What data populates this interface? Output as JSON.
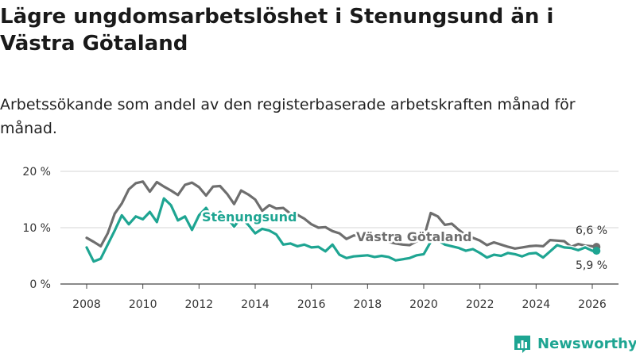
{
  "title": "Lägre ungdomsarbetslöshet i Stenungsund än i Västra Götaland",
  "subtitle": "Arbetssökande som andel av den registerbaserade arbetskraften månad för månad.",
  "brand": {
    "name": "Newsworthy",
    "color": "#1ea592"
  },
  "chart_data": {
    "type": "line",
    "title": "Lägre ungdomsarbetslöshet i Stenungsund än i Västra Götaland",
    "xlabel": "",
    "ylabel": "",
    "xlim": [
      2007.5,
      2026.6
    ],
    "ylim": [
      0,
      20
    ],
    "grid": true,
    "x_ticks": [
      2008,
      2010,
      2012,
      2014,
      2016,
      2018,
      2020,
      2022,
      2024,
      2026
    ],
    "x_tick_labels": [
      "2008",
      "2010",
      "2012",
      "2014",
      "2016",
      "2018",
      "2020",
      "2022",
      "2024",
      "2026"
    ],
    "y_ticks": [
      0,
      10,
      20
    ],
    "y_tick_labels": [
      "0 %",
      "10 %",
      "20 %"
    ],
    "series": [
      {
        "name": "Västra Götaland",
        "color": "#6e6e6e",
        "end_label": "6,6 %",
        "x": [
          2008.0,
          2008.25,
          2008.5,
          2008.75,
          2009.0,
          2009.25,
          2009.5,
          2009.75,
          2010.0,
          2010.25,
          2010.5,
          2010.75,
          2011.0,
          2011.25,
          2011.5,
          2011.75,
          2012.0,
          2012.25,
          2012.5,
          2012.75,
          2013.0,
          2013.25,
          2013.5,
          2013.75,
          2014.0,
          2014.25,
          2014.5,
          2014.75,
          2015.0,
          2015.25,
          2015.5,
          2015.75,
          2016.0,
          2016.25,
          2016.5,
          2016.75,
          2017.0,
          2017.25,
          2017.5,
          2017.75,
          2018.0,
          2018.25,
          2018.5,
          2018.75,
          2019.0,
          2019.25,
          2019.5,
          2019.75,
          2020.0,
          2020.25,
          2020.5,
          2020.75,
          2021.0,
          2021.25,
          2021.5,
          2021.75,
          2022.0,
          2022.25,
          2022.5,
          2022.75,
          2023.0,
          2023.25,
          2023.5,
          2023.75,
          2024.0,
          2024.25,
          2024.5,
          2024.75,
          2025.0,
          2025.25,
          2025.5,
          2025.75,
          2026.0,
          2026.15
        ],
        "values": [
          8.2,
          7.5,
          6.7,
          9.0,
          12.5,
          14.3,
          16.8,
          17.9,
          18.2,
          16.4,
          18.1,
          17.3,
          16.6,
          15.8,
          17.6,
          18.0,
          17.2,
          15.7,
          17.3,
          17.4,
          16.0,
          14.2,
          16.6,
          15.9,
          15.0,
          13.0,
          14.0,
          13.4,
          13.5,
          12.5,
          12.3,
          11.6,
          10.6,
          10.0,
          10.1,
          9.4,
          9.0,
          8.0,
          8.6,
          8.7,
          8.3,
          8.0,
          8.4,
          7.5,
          7.2,
          7.0,
          6.9,
          7.6,
          8.2,
          12.6,
          12.0,
          10.5,
          10.7,
          9.6,
          8.6,
          8.2,
          7.7,
          6.9,
          7.4,
          7.0,
          6.6,
          6.3,
          6.5,
          6.7,
          6.8,
          6.7,
          7.8,
          7.7,
          7.6,
          6.6,
          7.1,
          6.8,
          6.7,
          6.6
        ]
      },
      {
        "name": "Stenungsund",
        "color": "#1ea592",
        "end_label": "5,9 %",
        "x": [
          2008.0,
          2008.25,
          2008.5,
          2008.75,
          2009.0,
          2009.25,
          2009.5,
          2009.75,
          2010.0,
          2010.25,
          2010.5,
          2010.75,
          2011.0,
          2011.25,
          2011.5,
          2011.75,
          2012.0,
          2012.25,
          2012.5,
          2012.75,
          2013.0,
          2013.25,
          2013.5,
          2013.75,
          2014.0,
          2014.25,
          2014.5,
          2014.75,
          2015.0,
          2015.25,
          2015.5,
          2015.75,
          2016.0,
          2016.25,
          2016.5,
          2016.75,
          2017.0,
          2017.25,
          2017.5,
          2017.75,
          2018.0,
          2018.25,
          2018.5,
          2018.75,
          2019.0,
          2019.25,
          2019.5,
          2019.75,
          2020.0,
          2020.25,
          2020.5,
          2020.75,
          2021.0,
          2021.25,
          2021.5,
          2021.75,
          2022.0,
          2022.25,
          2022.5,
          2022.75,
          2023.0,
          2023.25,
          2023.5,
          2023.75,
          2024.0,
          2024.25,
          2024.5,
          2024.75,
          2025.0,
          2025.25,
          2025.5,
          2025.75,
          2026.0,
          2026.15
        ],
        "values": [
          6.5,
          4.0,
          4.5,
          7.0,
          9.5,
          12.2,
          10.6,
          12.0,
          11.5,
          12.8,
          11.0,
          15.2,
          14.0,
          11.3,
          12.0,
          9.6,
          12.2,
          13.5,
          11.5,
          12.8,
          11.8,
          10.2,
          11.8,
          10.5,
          9.0,
          9.8,
          9.5,
          8.8,
          7.0,
          7.2,
          6.7,
          7.0,
          6.5,
          6.6,
          5.8,
          7.0,
          5.2,
          4.6,
          4.9,
          5.0,
          5.1,
          4.8,
          5.0,
          4.8,
          4.2,
          4.4,
          4.6,
          5.1,
          5.3,
          7.5,
          7.8,
          7.0,
          6.7,
          6.4,
          5.9,
          6.2,
          5.5,
          4.7,
          5.2,
          5.0,
          5.5,
          5.3,
          4.9,
          5.4,
          5.5,
          4.7,
          5.8,
          6.9,
          6.5,
          6.4,
          6.0,
          6.5,
          5.9,
          5.9
        ]
      }
    ]
  }
}
